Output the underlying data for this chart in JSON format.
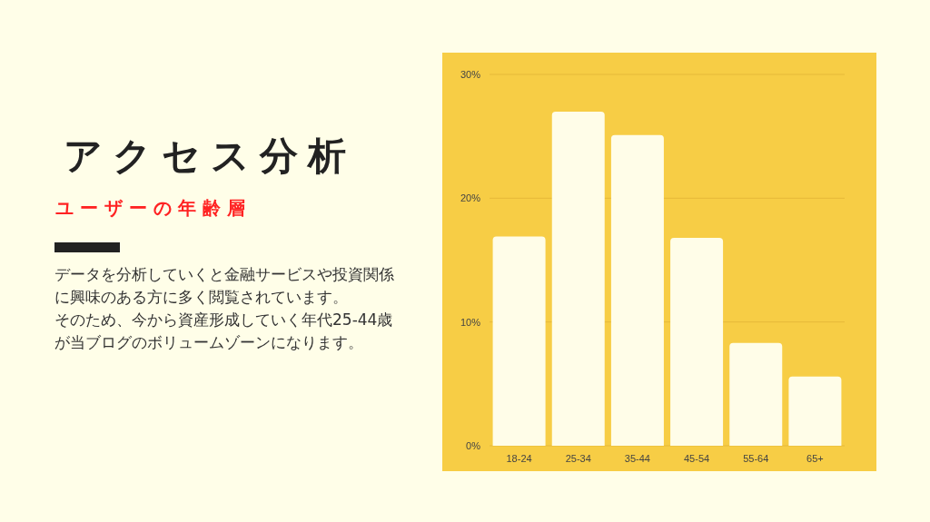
{
  "chart_data": {
    "type": "bar",
    "title": "アクセス分析",
    "subtitle": "ユーザーの年齢層",
    "annotations": [
      "データを分析していくと金融サービスや投資関係に興味のある方に多く閲覧されています。",
      "そのため、今から資産形成していく年代25-44歳が当ブログのボリュームゾーンになります。"
    ],
    "categories": [
      "18-24",
      "25-34",
      "35-44",
      "45-54",
      "55-64",
      "65+"
    ],
    "values": [
      16.9,
      27.0,
      25.1,
      16.8,
      8.3,
      5.6
    ],
    "color": "#fffde8",
    "ylim": [
      0,
      30
    ],
    "yticks": [
      {
        "value": 0,
        "label": "0%"
      },
      {
        "value": 10,
        "label": "10%"
      },
      {
        "value": 20,
        "label": "20%"
      },
      {
        "value": 30,
        "label": "30%"
      }
    ],
    "grid": "y"
  }
}
